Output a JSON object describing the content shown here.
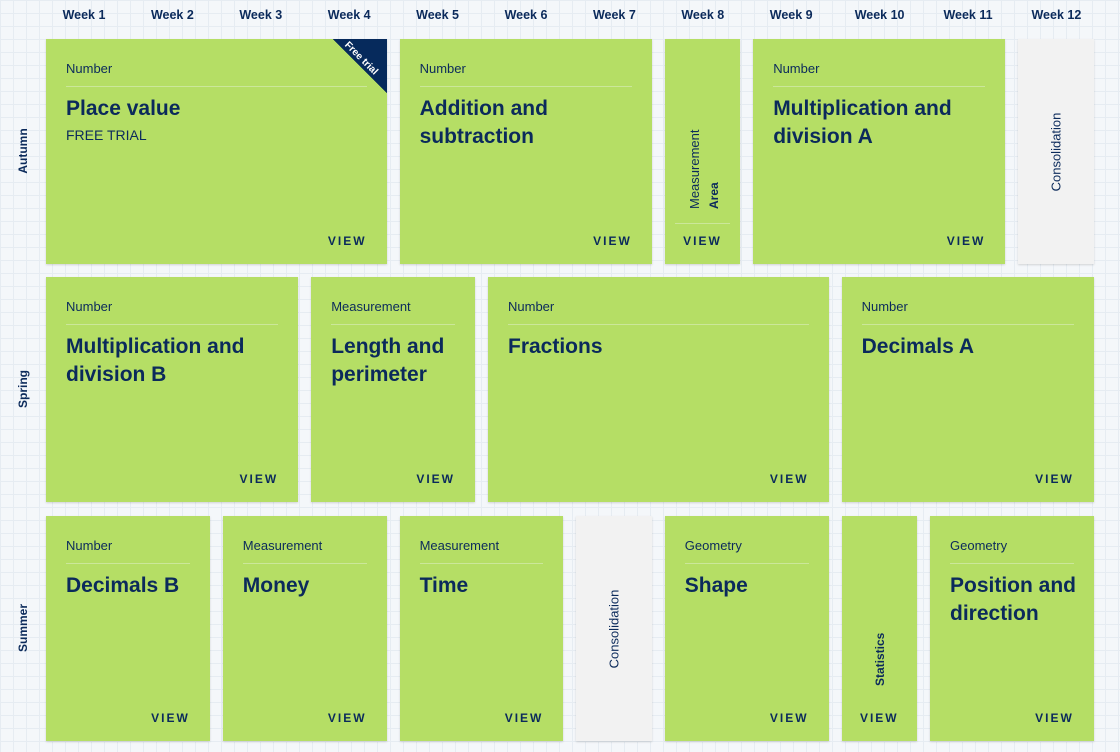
{
  "weeks": [
    "Week 1",
    "Week 2",
    "Week 3",
    "Week 4",
    "Week 5",
    "Week 6",
    "Week 7",
    "Week 8",
    "Week 9",
    "Week 10",
    "Week 11",
    "Week 12"
  ],
  "colors": {
    "card": "#b5de65",
    "consolidation": "#f2f2f2",
    "text": "#0b2a5b"
  },
  "view_label": "VIEW",
  "terms": [
    {
      "name": "Autumn",
      "blocks": [
        {
          "start_week": 1,
          "weeks": 4,
          "category": "Number",
          "title": "Place value",
          "subtitle": "FREE TRIAL",
          "ribbon": "Free trial"
        },
        {
          "start_week": 5,
          "weeks": 3,
          "category": "Number",
          "title": "Addition and subtraction"
        },
        {
          "start_week": 8,
          "weeks": 1,
          "category": "Measurement",
          "title": "Area"
        },
        {
          "start_week": 9,
          "weeks": 3,
          "category": "Number",
          "title": "Multiplication and division A"
        },
        {
          "start_week": 12,
          "weeks": 1,
          "title": "Consolidation",
          "consolidation": true
        }
      ]
    },
    {
      "name": "Spring",
      "blocks": [
        {
          "start_week": 1,
          "weeks": 3,
          "category": "Number",
          "title": "Multiplication and division B"
        },
        {
          "start_week": 4,
          "weeks": 2,
          "category": "Measurement",
          "title": "Length and perimeter"
        },
        {
          "start_week": 6,
          "weeks": 4,
          "category": "Number",
          "title": "Fractions"
        },
        {
          "start_week": 10,
          "weeks": 3,
          "category": "Number",
          "title": "Decimals A"
        }
      ]
    },
    {
      "name": "Summer",
      "blocks": [
        {
          "start_week": 1,
          "weeks": 2,
          "category": "Number",
          "title": "Decimals B"
        },
        {
          "start_week": 3,
          "weeks": 2,
          "category": "Measurement",
          "title": "Money"
        },
        {
          "start_week": 5,
          "weeks": 2,
          "category": "Measurement",
          "title": "Time"
        },
        {
          "start_week": 7,
          "weeks": 1,
          "title": "Consolidation",
          "consolidation": true
        },
        {
          "start_week": 8,
          "weeks": 2,
          "category": "Geometry",
          "title": "Shape"
        },
        {
          "start_week": 10,
          "weeks": 1,
          "title": "Statistics"
        },
        {
          "start_week": 11,
          "weeks": 2,
          "category": "Geometry",
          "title": "Position and direction"
        }
      ]
    }
  ]
}
